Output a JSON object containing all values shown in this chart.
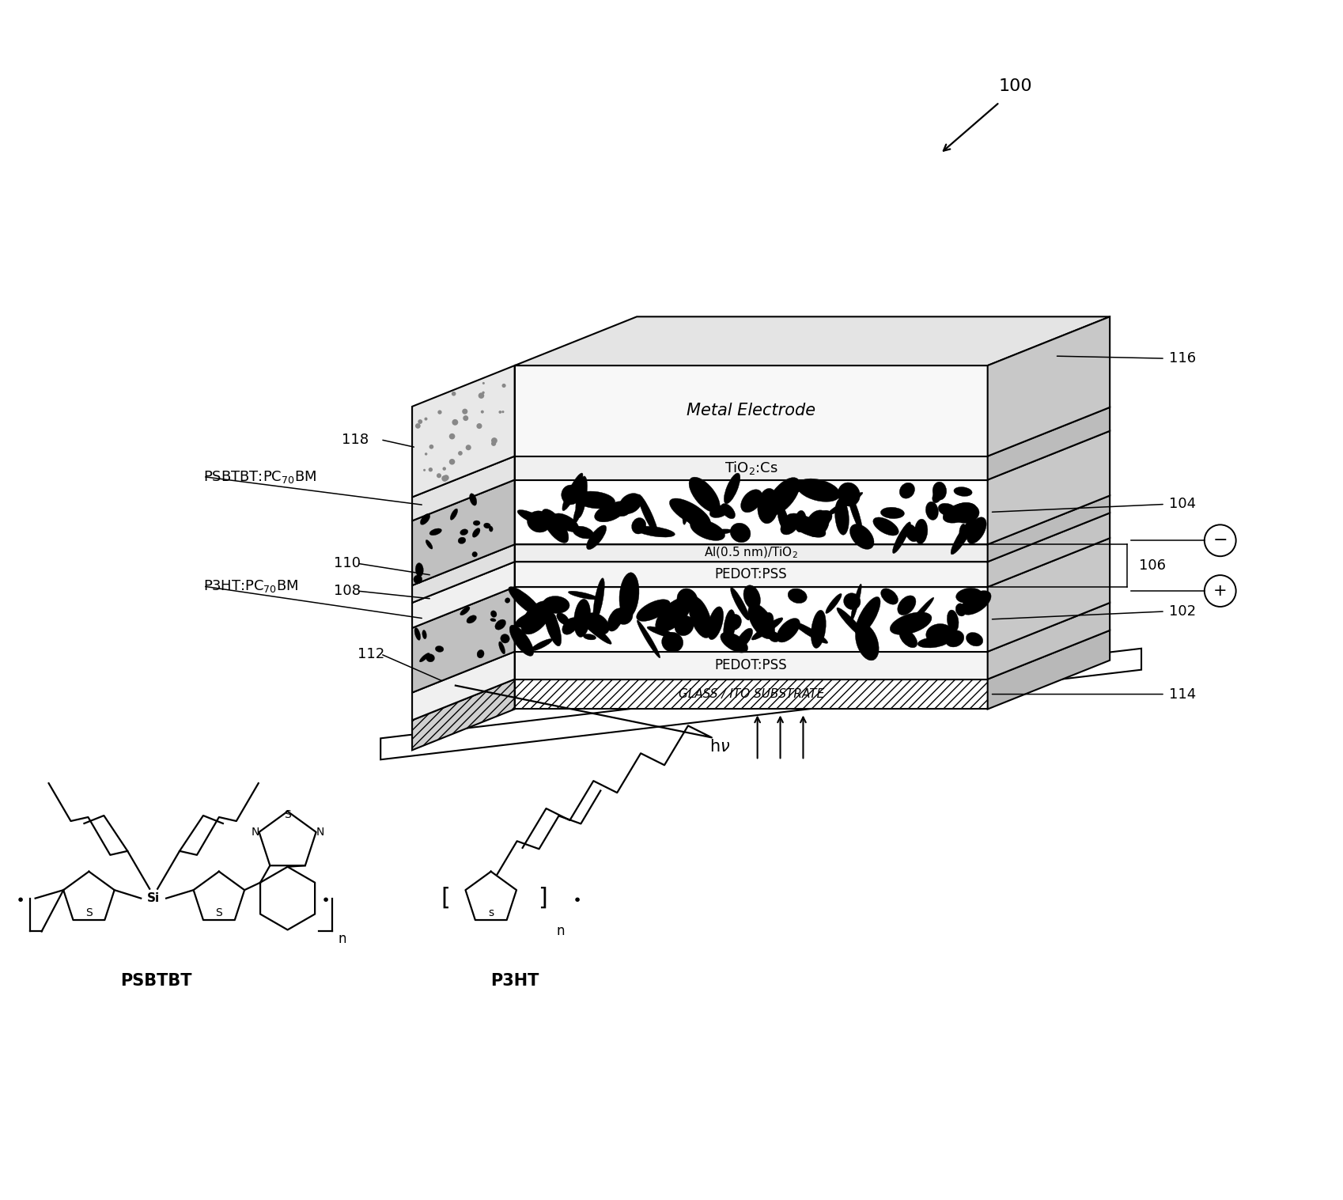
{
  "bg_color": "#ffffff",
  "fig_width": 16.99,
  "fig_height": 15.17,
  "label_100": "100",
  "label_118": "118",
  "label_116": "116",
  "label_104": "104",
  "label_106": "106",
  "label_102": "102",
  "label_114": "114",
  "label_110": "110",
  "label_108": "108",
  "label_112": "112",
  "layer_metal": "Metal Electrode",
  "layer_tio2cs": "TiO₂:Cs",
  "layer_pedotpss": "PEDOT:PSS",
  "layer_al_tio2": "Al(0.5 nm)/TiO₂",
  "layer_glass": "GLASS / ITO SUBSTRATE",
  "label_psbtbt_pc70bm": "PSBTBT:PC",
  "label_p3ht_pc70bm": "P3HT:PC",
  "label_psbtbt": "PSBTBT",
  "label_p3ht": "P3HT",
  "minus_sign": "−",
  "plus_sign": "+"
}
